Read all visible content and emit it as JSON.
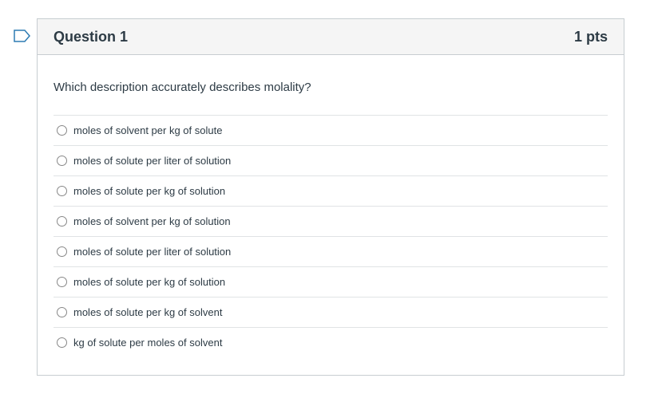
{
  "question": {
    "title": "Question 1",
    "points": "1 pts",
    "text": "Which description accurately describes molality?",
    "answers": [
      "moles of solvent per kg of solute",
      "moles of solute per liter of solution",
      "moles of solute per kg of solution",
      "moles of solvent per kg of solution",
      "moles of solute per liter of solution",
      "moles of solute per kg of solution",
      "moles of solute per kg of solvent",
      "kg of solute per moles of solvent"
    ]
  }
}
